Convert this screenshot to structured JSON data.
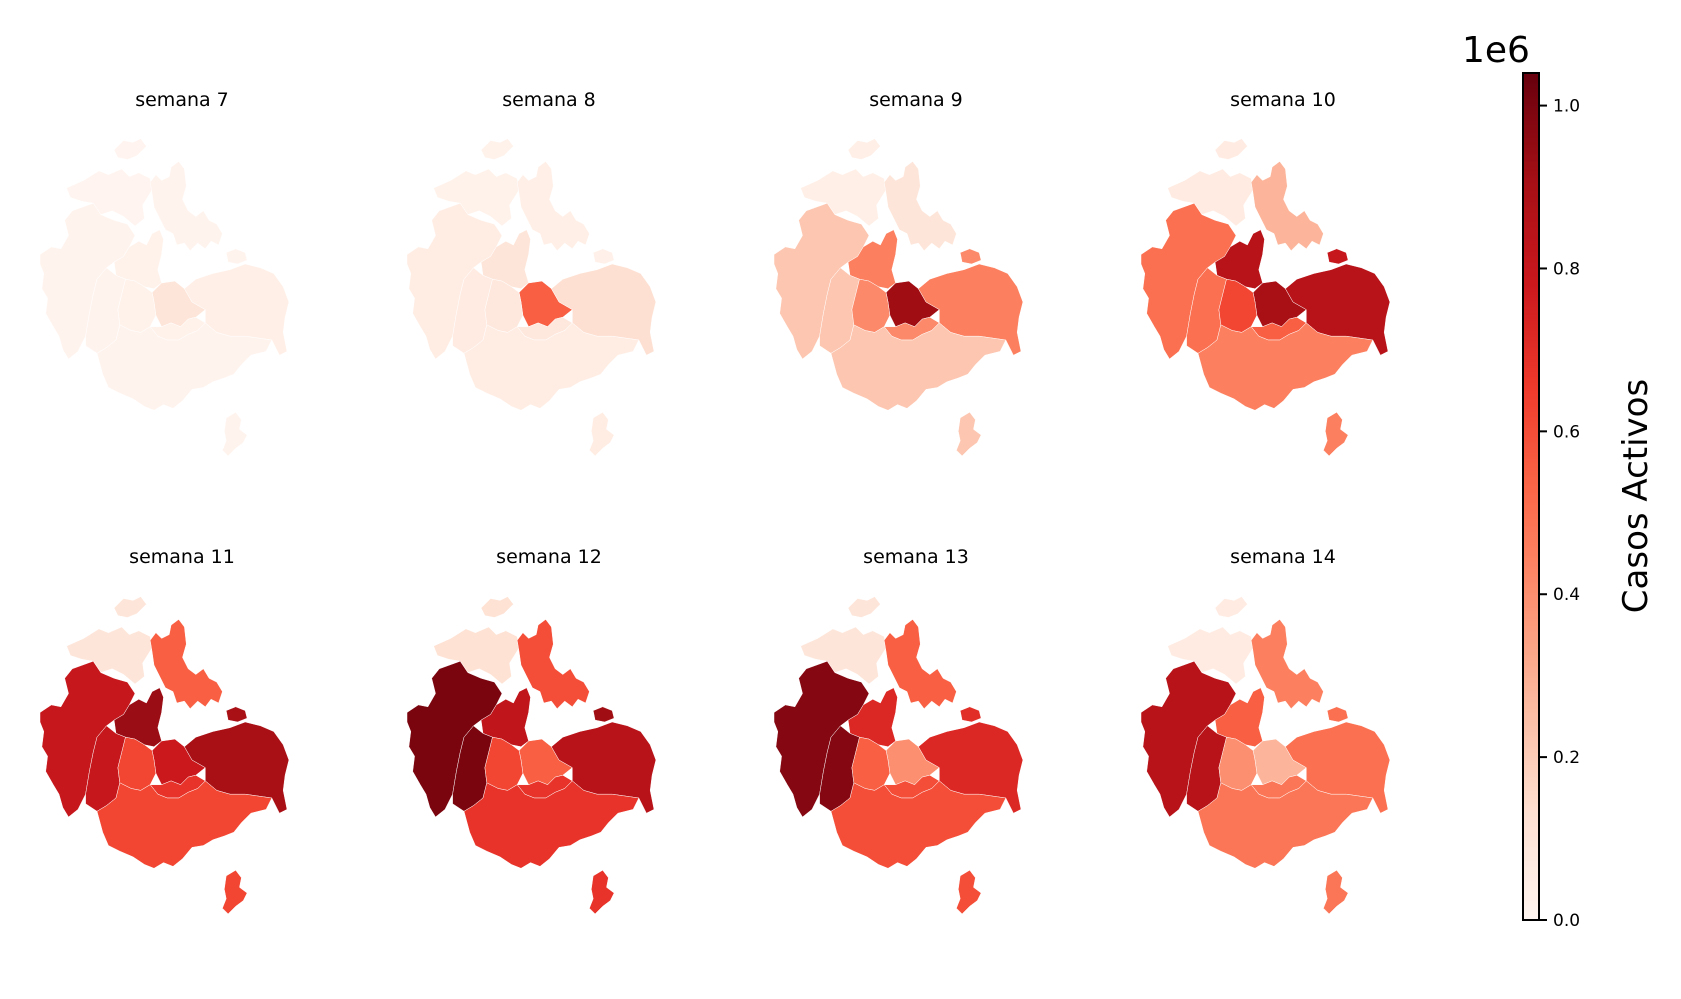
{
  "figure": {
    "colormap": "Reds",
    "colormap_stops": [
      "#fff5f0",
      "#fee0d2",
      "#fcbba1",
      "#fc9272",
      "#fb6a4a",
      "#ef3b2c",
      "#cb181d",
      "#a50f15",
      "#67000d"
    ],
    "background": "#ffffff"
  },
  "region_names": [
    "norte",
    "noreste",
    "isla",
    "noroeste",
    "centro_oeste",
    "centro",
    "este",
    "oeste",
    "sur_centro",
    "sur_este",
    "sur",
    "sureste"
  ],
  "panels": [
    {
      "title": "semana 7",
      "values": {
        "norte": 0.005,
        "noreste": 0.01,
        "isla": 0.01,
        "noroeste": 0.01,
        "centro_oeste": 0.02,
        "centro": 0.1,
        "este": 0.04,
        "oeste": 0.01,
        "sur_centro": 0.02,
        "sur_este": 0.02,
        "sur": 0.01,
        "sureste": 0.01
      }
    },
    {
      "title": "semana 8",
      "values": {
        "norte": 0.02,
        "noreste": 0.04,
        "isla": 0.03,
        "noroeste": 0.05,
        "centro_oeste": 0.1,
        "centro": 0.55,
        "este": 0.13,
        "oeste": 0.06,
        "sur_centro": 0.08,
        "sur_este": 0.08,
        "sur": 0.05,
        "sureste": 0.05
      }
    },
    {
      "title": "semana 9",
      "values": {
        "norte": 0.04,
        "noreste": 0.1,
        "isla": 0.42,
        "noroeste": 0.22,
        "centro_oeste": 0.45,
        "centro": 0.92,
        "este": 0.45,
        "oeste": 0.22,
        "sur_centro": 0.42,
        "sur_este": 0.42,
        "sur": 0.22,
        "sureste": 0.22
      }
    },
    {
      "title": "semana 10",
      "values": {
        "norte": 0.06,
        "noreste": 0.28,
        "isla": 0.8,
        "noroeste": 0.5,
        "centro_oeste": 0.85,
        "centro": 0.9,
        "este": 0.85,
        "oeste": 0.5,
        "sur_centro": 0.62,
        "sur_este": 0.55,
        "sur": 0.45,
        "sureste": 0.45
      }
    },
    {
      "title": "semana 11",
      "values": {
        "norte": 0.1,
        "noreste": 0.55,
        "isla": 0.9,
        "noroeste": 0.8,
        "centro_oeste": 0.93,
        "centro": 0.78,
        "este": 0.9,
        "oeste": 0.8,
        "sur_centro": 0.62,
        "sur_este": 0.68,
        "sur": 0.62,
        "sureste": 0.62
      }
    },
    {
      "title": "semana 12",
      "values": {
        "norte": 0.12,
        "noreste": 0.6,
        "isla": 0.92,
        "noroeste": 1.0,
        "centro_oeste": 0.82,
        "centro": 0.55,
        "este": 0.85,
        "oeste": 1.0,
        "sur_centro": 0.62,
        "sur_este": 0.68,
        "sur": 0.68,
        "sureste": 0.68
      }
    },
    {
      "title": "semana 13",
      "values": {
        "norte": 0.1,
        "noreste": 0.55,
        "isla": 0.7,
        "noroeste": 0.98,
        "centro_oeste": 0.72,
        "centro": 0.4,
        "este": 0.72,
        "oeste": 0.98,
        "sur_centro": 0.55,
        "sur_este": 0.6,
        "sur": 0.6,
        "sureste": 0.6
      }
    },
    {
      "title": "semana 14",
      "values": {
        "norte": 0.06,
        "noreste": 0.45,
        "isla": 0.5,
        "noroeste": 0.85,
        "centro_oeste": 0.55,
        "centro": 0.28,
        "este": 0.5,
        "oeste": 0.85,
        "sur_centro": 0.4,
        "sur_este": 0.48,
        "sur": 0.48,
        "sureste": 0.48
      }
    }
  ],
  "colorbar": {
    "label": "Casos Activos",
    "offset_text": "1e6",
    "min": 0.0,
    "max": 1.04,
    "ticks": [
      0.0,
      0.2,
      0.4,
      0.6,
      0.8,
      1.0
    ],
    "tick_labels": [
      "0.0",
      "0.2",
      "0.4",
      "0.6",
      "0.8",
      "1.0"
    ]
  }
}
